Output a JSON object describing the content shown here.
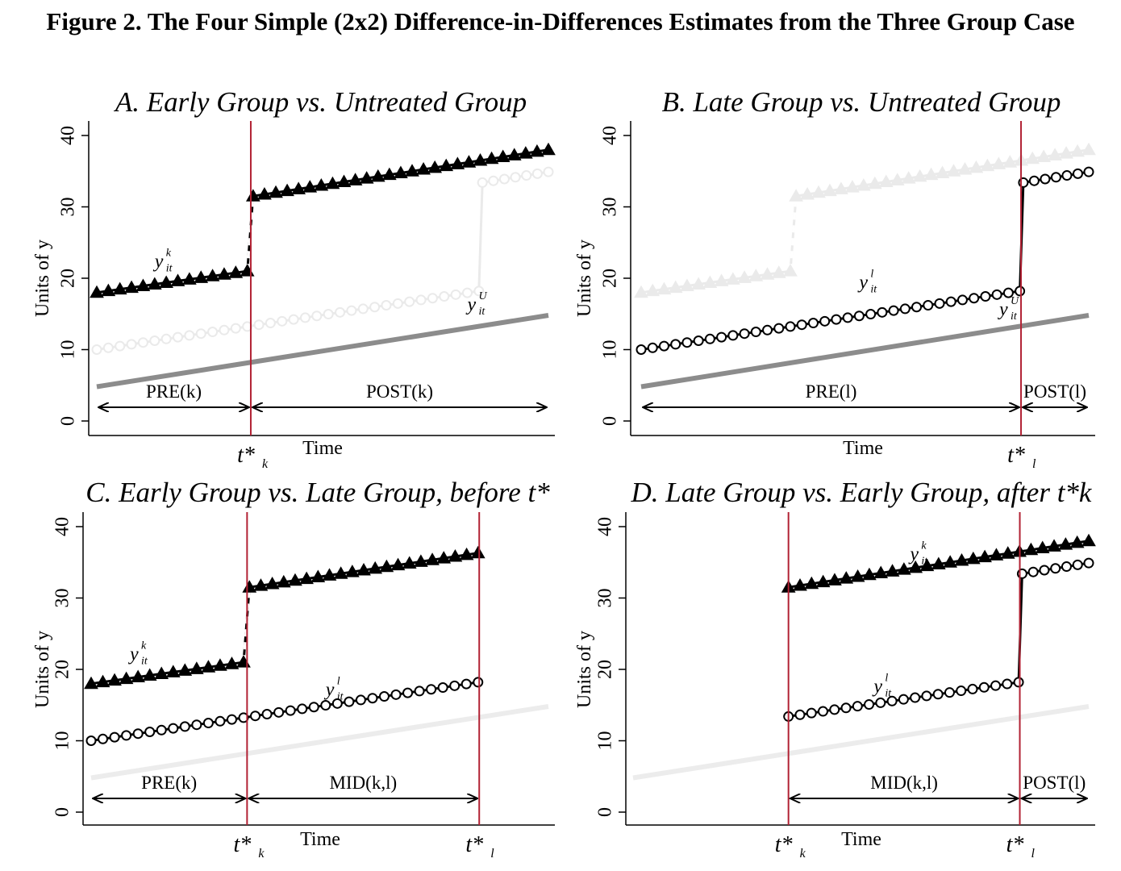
{
  "figure": {
    "title": "Figure 2. The Four Simple (2x2) Difference-in-Differences Estimates from the Three Group Case"
  },
  "colors": {
    "treated": "#000000",
    "faded": "#eaeaea",
    "untreated": "#8c8c8c",
    "untreated_faded": "#ececec",
    "vline": "#b22234"
  },
  "chart_data": [
    {
      "type": "line",
      "title": "A. Early Group vs. Untreated Group",
      "xlabel": "Time",
      "ylabel": "Units of y",
      "ylim": [
        0,
        40
      ],
      "yticks": [
        0,
        10,
        20,
        30,
        40
      ],
      "xlim": [
        1,
        40
      ],
      "grid": false,
      "x": [
        1,
        40
      ],
      "series": [
        {
          "label": "y_it^k",
          "marker": "triangle",
          "state": "active",
          "segments": [
            {
              "x": [
                1,
                14
              ],
              "y": [
                18.0,
                21.0
              ]
            },
            {
              "x": [
                14.5,
                40
              ],
              "y": [
                31.5,
                38.0
              ]
            }
          ]
        },
        {
          "label": "",
          "marker": "circle",
          "state": "faded",
          "segments": [
            {
              "x": [
                1,
                34
              ],
              "y": [
                10.0,
                18.2
              ]
            },
            {
              "x": [
                34.3,
                40
              ],
              "y": [
                33.4,
                34.9
              ]
            }
          ]
        },
        {
          "label": "y_it^U",
          "marker": "none",
          "state": "untreated",
          "segments": [
            {
              "x": [
                1,
                40
              ],
              "y": [
                4.8,
                14.8
              ]
            }
          ]
        }
      ],
      "series_labels": [
        {
          "base": "y",
          "sup": "k",
          "sub": "it",
          "x": 6,
          "y": 21.5
        },
        {
          "base": "y",
          "sup": "U",
          "sub": "it",
          "x": 33,
          "y": 15.5
        }
      ],
      "vlines": [
        {
          "x": 14.3,
          "label": "t*k",
          "label_base": "t*",
          "label_sub": "k"
        }
      ],
      "periods": [
        {
          "label": "PRE(k)",
          "from": 1,
          "to": 14.3
        },
        {
          "label": "POST(k)",
          "from": 14.3,
          "to": 40
        }
      ]
    },
    {
      "type": "line",
      "title": "B. Late Group vs. Untreated Group",
      "xlabel": "Time",
      "ylabel": "Units of y",
      "ylim": [
        0,
        40
      ],
      "yticks": [
        0,
        10,
        20,
        30,
        40
      ],
      "xlim": [
        1,
        40
      ],
      "grid": false,
      "series": [
        {
          "label": "",
          "marker": "triangle",
          "state": "faded",
          "segments": [
            {
              "x": [
                1,
                14
              ],
              "y": [
                18.0,
                21.0
              ]
            },
            {
              "x": [
                14.5,
                40
              ],
              "y": [
                31.5,
                38.0
              ]
            }
          ]
        },
        {
          "label": "y_it^l",
          "marker": "circle",
          "state": "active",
          "segments": [
            {
              "x": [
                1,
                34
              ],
              "y": [
                10.0,
                18.2
              ]
            },
            {
              "x": [
                34.3,
                40
              ],
              "y": [
                33.4,
                34.9
              ]
            }
          ]
        },
        {
          "label": "y_it^U",
          "marker": "none",
          "state": "untreated",
          "segments": [
            {
              "x": [
                1,
                40
              ],
              "y": [
                4.8,
                14.8
              ]
            }
          ]
        }
      ],
      "series_labels": [
        {
          "base": "y",
          "sup": "l",
          "sub": "it",
          "x": 20,
          "y": 18.6
        },
        {
          "base": "y",
          "sup": "U",
          "sub": "it",
          "x": 32.2,
          "y": 14.8
        }
      ],
      "vlines": [
        {
          "x": 34.1,
          "label": "t*l",
          "label_base": "t*",
          "label_sub": "l"
        }
      ],
      "periods": [
        {
          "label": "PRE(l)",
          "from": 1,
          "to": 34.1
        },
        {
          "label": "POST(l)",
          "from": 34.1,
          "to": 40
        }
      ]
    },
    {
      "type": "line",
      "title": "C. Early Group vs. Late Group, before t*",
      "xlabel": "Time",
      "ylabel": "Units of y",
      "ylim": [
        0,
        40
      ],
      "yticks": [
        0,
        10,
        20,
        30,
        40
      ],
      "xlim": [
        1,
        40
      ],
      "grid": false,
      "series": [
        {
          "label": "y_it^k",
          "marker": "triangle",
          "state": "active",
          "segments": [
            {
              "x": [
                1,
                14
              ],
              "y": [
                18.0,
                21.0
              ]
            },
            {
              "x": [
                14.5,
                34
              ],
              "y": [
                31.5,
                36.3
              ]
            }
          ]
        },
        {
          "label": "y_it^l",
          "marker": "circle",
          "state": "active",
          "segments": [
            {
              "x": [
                1,
                34
              ],
              "y": [
                10.0,
                18.2
              ]
            }
          ]
        },
        {
          "label": "",
          "marker": "none",
          "state": "untreated_faded",
          "segments": [
            {
              "x": [
                1,
                40
              ],
              "y": [
                4.8,
                14.8
              ]
            }
          ]
        }
      ],
      "series_labels": [
        {
          "base": "y",
          "sup": "k",
          "sub": "it",
          "x": 4.3,
          "y": 21.3
        },
        {
          "base": "y",
          "sup": "l",
          "sub": "it",
          "x": 21,
          "y": 16.3
        }
      ],
      "vlines": [
        {
          "x": 14.3,
          "label": "t*k",
          "label_base": "t*",
          "label_sub": "k"
        },
        {
          "x": 34.1,
          "label": "t*l",
          "label_base": "t*",
          "label_sub": "l"
        }
      ],
      "periods": [
        {
          "label": "PRE(k)",
          "from": 1,
          "to": 14.3
        },
        {
          "label": "MID(k,l)",
          "from": 14.3,
          "to": 34.1
        }
      ]
    },
    {
      "type": "line",
      "title": "D. Late Group vs. Early Group, after t*k",
      "xlabel": "Time",
      "ylabel": "Units of y",
      "ylim": [
        0,
        40
      ],
      "yticks": [
        0,
        10,
        20,
        30,
        40
      ],
      "xlim": [
        1,
        40
      ],
      "grid": false,
      "series": [
        {
          "label": "y_it^k",
          "marker": "triangle",
          "state": "active",
          "segments": [
            {
              "x": [
                14.3,
                40
              ],
              "y": [
                31.5,
                38.0
              ]
            }
          ]
        },
        {
          "label": "y_it^l",
          "marker": "circle",
          "state": "active",
          "segments": [
            {
              "x": [
                14.3,
                34
              ],
              "y": [
                13.4,
                18.2
              ]
            },
            {
              "x": [
                34.3,
                40
              ],
              "y": [
                33.4,
                34.9
              ]
            }
          ]
        },
        {
          "label": "",
          "marker": "none",
          "state": "untreated_faded",
          "segments": [
            {
              "x": [
                1,
                40
              ],
              "y": [
                4.8,
                14.8
              ]
            }
          ]
        }
      ],
      "series_labels": [
        {
          "base": "y",
          "sup": "k",
          "sub": "it",
          "x": 24.7,
          "y": 35.3
        },
        {
          "base": "y",
          "sup": "l",
          "sub": "it",
          "x": 21.6,
          "y": 16.8
        }
      ],
      "vlines": [
        {
          "x": 14.3,
          "label": "t*k",
          "label_base": "t*",
          "label_sub": "k"
        },
        {
          "x": 34.1,
          "label": "t*l",
          "label_base": "t*",
          "label_sub": "l"
        }
      ],
      "periods": [
        {
          "label": "MID(k,l)",
          "from": 14.3,
          "to": 34.1
        },
        {
          "label": "POST(l)",
          "from": 34.1,
          "to": 40
        }
      ]
    }
  ]
}
